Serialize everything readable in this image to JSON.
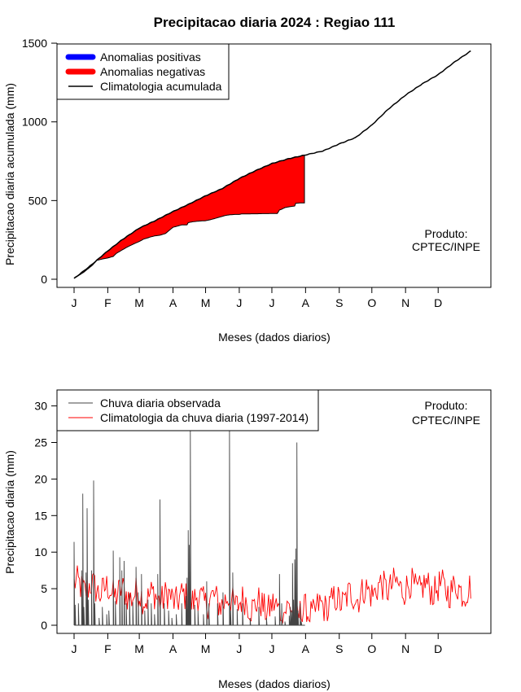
{
  "chart_data": [
    {
      "type": "area",
      "title": "Precipitacao diaria 2024 : Regiao 111",
      "xlabel": "Meses (dados diarios)",
      "ylabel": "Precipitacao diaria acumulada (mm)",
      "ylim": [
        0,
        1500
      ],
      "yticks": [
        0,
        500,
        1000,
        1500
      ],
      "month_ticks": [
        "J",
        "F",
        "M",
        "A",
        "M",
        "J",
        "J",
        "A",
        "S",
        "O",
        "N",
        "D"
      ],
      "month_days": [
        1,
        32,
        61,
        92,
        122,
        153,
        183,
        214,
        245,
        275,
        306,
        336
      ],
      "legend": {
        "position": "top-left",
        "positive": "Anomalias positivas",
        "negative": "Anomalias negativas",
        "climatology": "Climatologia acumulada"
      },
      "annotation": [
        "Produto:",
        "CPTEC/INPE"
      ],
      "colors": {
        "positive": "#0000ff",
        "negative": "#ff0000",
        "line": "#000000"
      },
      "climatology_cumulative": {
        "day": [
          1,
          15,
          32,
          45,
          61,
          75,
          92,
          106,
          122,
          137,
          153,
          168,
          183,
          198,
          214,
          230,
          245,
          260,
          275,
          290,
          306,
          321,
          336,
          351,
          366
        ],
        "mm": [
          5,
          80,
          180,
          250,
          325,
          370,
          430,
          475,
          530,
          575,
          640,
          690,
          735,
          765,
          790,
          815,
          860,
          900,
          980,
          1080,
          1170,
          1240,
          1300,
          1380,
          1450
        ]
      },
      "observed_cumulative": {
        "day": [
          1,
          10,
          18,
          22,
          28,
          32,
          37,
          40,
          45,
          50,
          56,
          61,
          65,
          72,
          75,
          80,
          85,
          92,
          100,
          105,
          106,
          110,
          115,
          122,
          125,
          130,
          135,
          140,
          145,
          150,
          153,
          155,
          160,
          165,
          170,
          175,
          180,
          183,
          188,
          190,
          192,
          195,
          200,
          204,
          205,
          210,
          213
        ],
        "mm": [
          5,
          45,
          90,
          120,
          130,
          135,
          145,
          165,
          185,
          205,
          225,
          240,
          255,
          270,
          275,
          280,
          290,
          330,
          345,
          346,
          360,
          365,
          369,
          372,
          376,
          385,
          395,
          405,
          410,
          412,
          412,
          415,
          415,
          416,
          416,
          417,
          417,
          418,
          418,
          440,
          445,
          455,
          462,
          465,
          483,
          485,
          485
        ]
      }
    },
    {
      "type": "line",
      "xlabel": "Meses (dados diarios)",
      "ylabel": "Precipitacao diaria (mm)",
      "ylim": [
        0,
        32
      ],
      "yticks": [
        0,
        5,
        10,
        15,
        20,
        25,
        30
      ],
      "month_ticks": [
        "J",
        "F",
        "M",
        "A",
        "M",
        "J",
        "J",
        "A",
        "S",
        "O",
        "N",
        "D"
      ],
      "month_days": [
        1,
        32,
        61,
        92,
        122,
        153,
        183,
        214,
        245,
        275,
        306,
        336
      ],
      "legend": {
        "position": "top-left",
        "observed": "Chuva diaria observada",
        "climatology": "Climatologia da chuva diaria (1997-2014)"
      },
      "annotation": [
        "Produto:",
        "CPTEC/INPE"
      ],
      "colors": {
        "observed": "#444444",
        "climatology": "#ff0000"
      },
      "observed_days": 213,
      "observed_peaks": [
        [
          1,
          11.4
        ],
        [
          2,
          2.8
        ],
        [
          5,
          3.0
        ],
        [
          8,
          7.5
        ],
        [
          9,
          18.0
        ],
        [
          10,
          2.5
        ],
        [
          12,
          7.2
        ],
        [
          13,
          16.0
        ],
        [
          14,
          3.5
        ],
        [
          17,
          7.5
        ],
        [
          19,
          19.8
        ],
        [
          20,
          3.0
        ],
        [
          24,
          1.0
        ],
        [
          27,
          2.5
        ],
        [
          31,
          1.5
        ],
        [
          33,
          2.0
        ],
        [
          37,
          10.2
        ],
        [
          39,
          3.3
        ],
        [
          43,
          9.3
        ],
        [
          45,
          7.5
        ],
        [
          47,
          8.8
        ],
        [
          49,
          3.0
        ],
        [
          52,
          4.4
        ],
        [
          55,
          3.2
        ],
        [
          58,
          8.0
        ],
        [
          60,
          4.5
        ],
        [
          63,
          7.0
        ],
        [
          66,
          2.0
        ],
        [
          69,
          3.5
        ],
        [
          72,
          3.0
        ],
        [
          75,
          1.5
        ],
        [
          78,
          7.0
        ],
        [
          80,
          17.2
        ],
        [
          84,
          3.0
        ],
        [
          88,
          2.0
        ],
        [
          91,
          1.0
        ],
        [
          95,
          1.5
        ],
        [
          100,
          3.0
        ],
        [
          104,
          4.0
        ],
        [
          105,
          6.5
        ],
        [
          106,
          13.0
        ],
        [
          107,
          11.0
        ],
        [
          108,
          27.0
        ],
        [
          112,
          2.8
        ],
        [
          115,
          2.0
        ],
        [
          120,
          1.5
        ],
        [
          123,
          6.0
        ],
        [
          125,
          3.0
        ],
        [
          133,
          3.0
        ],
        [
          138,
          4.5
        ],
        [
          144,
          27.0
        ],
        [
          145,
          2.0
        ],
        [
          147,
          7.2
        ],
        [
          151,
          2.2
        ],
        [
          156,
          3.0
        ],
        [
          163,
          1.0
        ],
        [
          171,
          2.5
        ],
        [
          178,
          1.0
        ],
        [
          186,
          1.2
        ],
        [
          190,
          7.0
        ],
        [
          192,
          3.0
        ],
        [
          195,
          0.5
        ],
        [
          199,
          1.3
        ],
        [
          200,
          2.5
        ],
        [
          201,
          2.0
        ],
        [
          202,
          8.5
        ],
        [
          203,
          3.5
        ],
        [
          204,
          9.0
        ],
        [
          205,
          10.5
        ],
        [
          206,
          25.0
        ],
        [
          207,
          2.0
        ],
        [
          209,
          3.0
        ],
        [
          210,
          0.5
        ]
      ]
    }
  ]
}
